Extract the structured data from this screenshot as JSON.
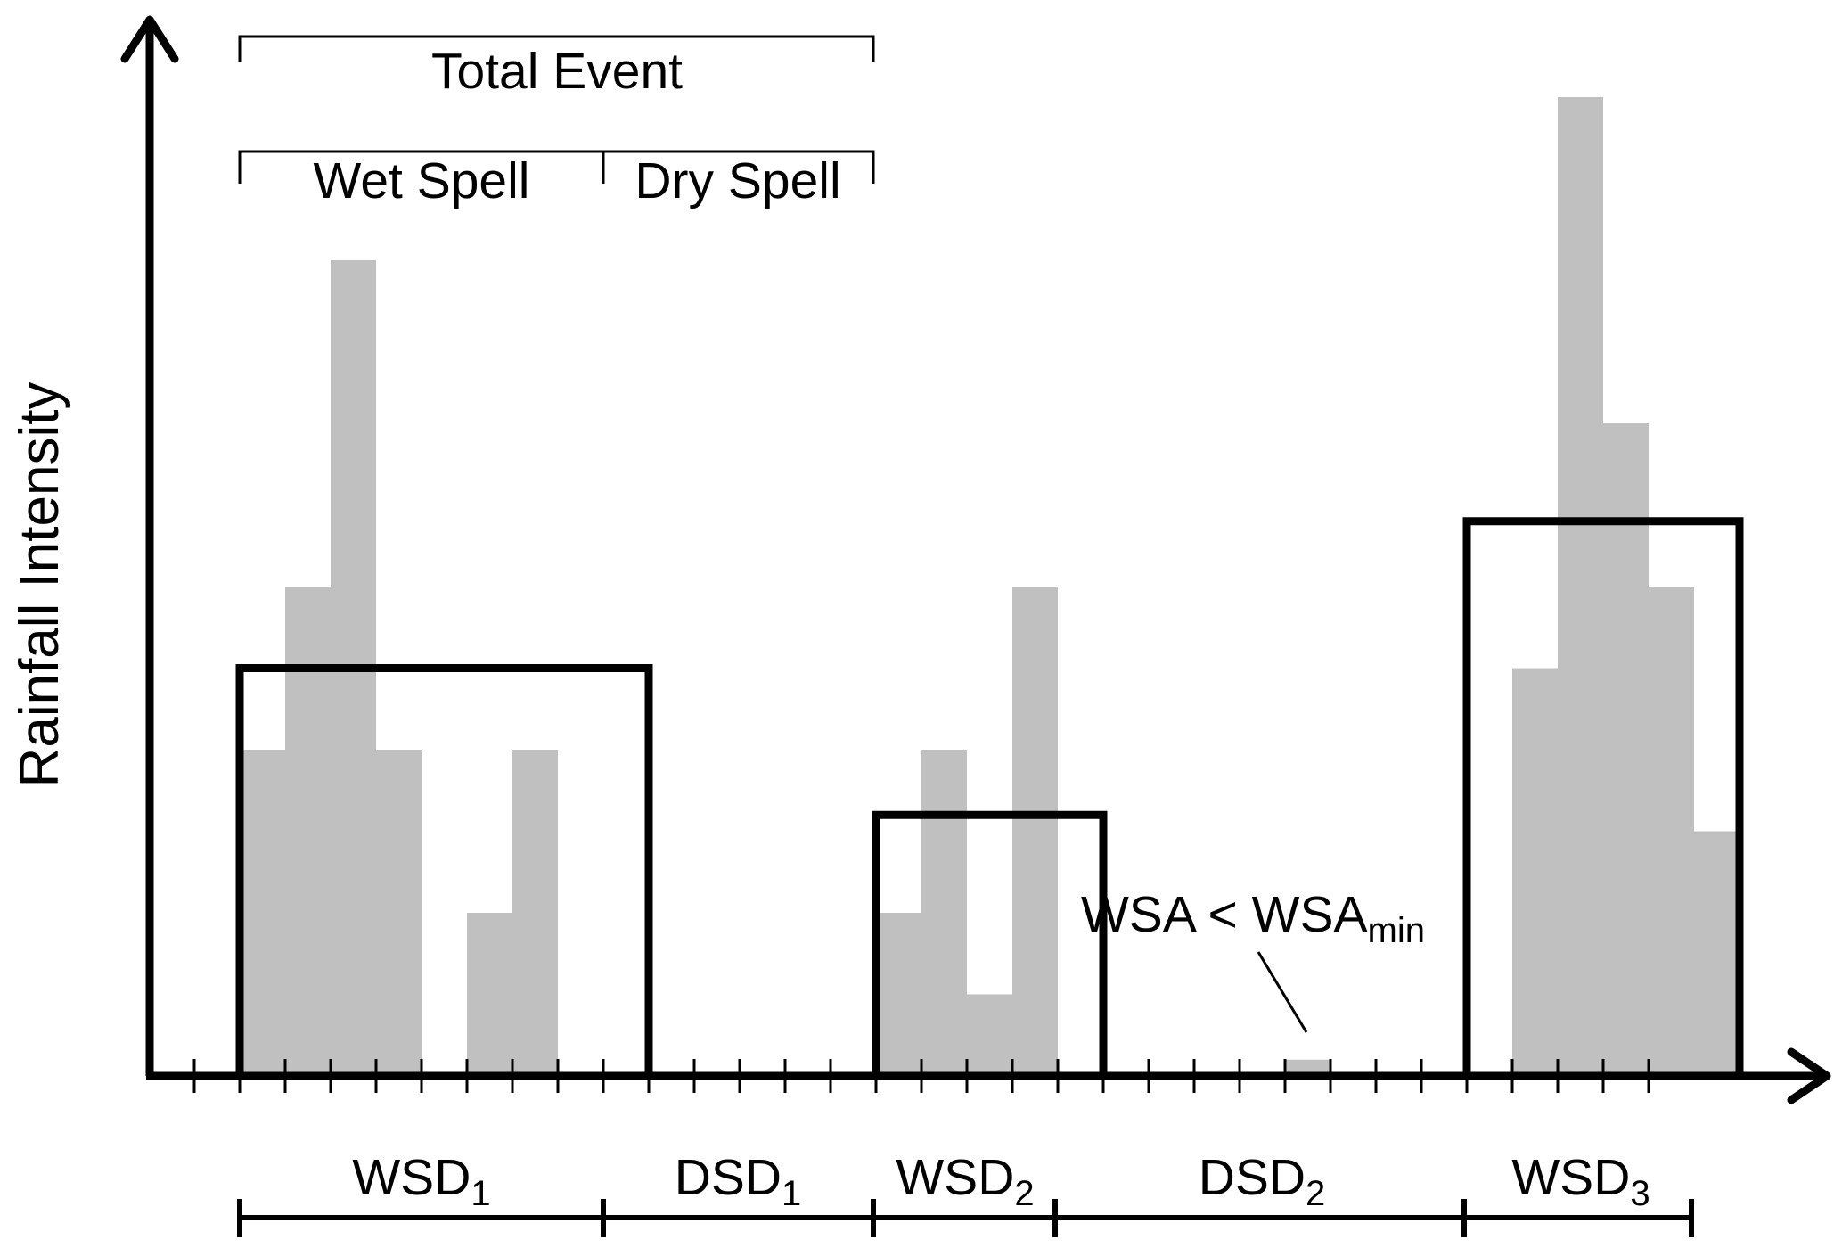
{
  "diagram": {
    "y_axis_label": "Rainfall Intensity",
    "colors": {
      "bars": "#c0c0c0",
      "lines": "#000000",
      "background": "#ffffff"
    },
    "total_event_label": "Total Event",
    "wet_spell_label": "Wet Spell",
    "dry_spell_label": "Dry Spell",
    "annotation": {
      "main": "WSA < WSA",
      "sub": "min"
    },
    "rainfall_bars": [
      2,
      3,
      5,
      2,
      0,
      1,
      2,
      0,
      0,
      0,
      0,
      0,
      0,
      0,
      1,
      2,
      0.5,
      3,
      0,
      0,
      0,
      0,
      0,
      0.1,
      0,
      0,
      0,
      0,
      2.5,
      6,
      4,
      3,
      1.5
    ],
    "spell_averages": [
      {
        "start": 0,
        "end": 8,
        "mean": 2.5
      },
      {
        "start": 14,
        "end": 18,
        "mean": 1.6
      },
      {
        "start": 27,
        "end": 32,
        "mean": 3.4
      }
    ],
    "durations": [
      {
        "label": "WSD",
        "sub": "1"
      },
      {
        "label": "DSD",
        "sub": "1"
      },
      {
        "label": "WSD",
        "sub": "2"
      },
      {
        "label": "DSD",
        "sub": "2"
      },
      {
        "label": "WSD",
        "sub": "3"
      }
    ]
  }
}
